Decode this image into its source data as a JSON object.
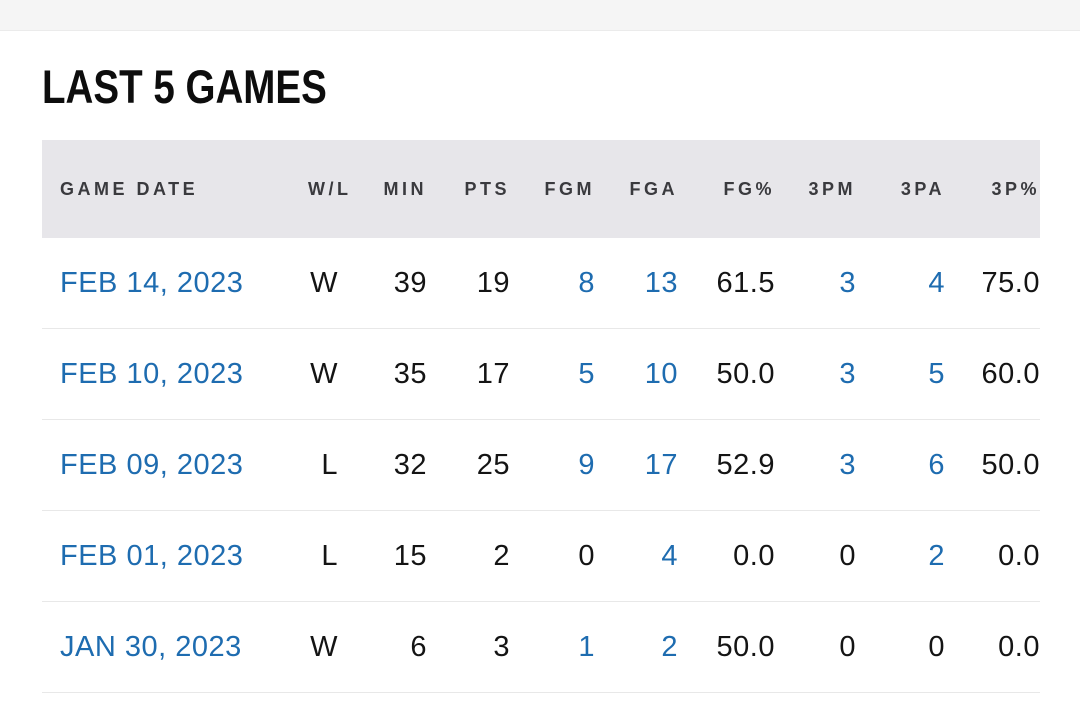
{
  "section": {
    "title": "LAST 5 GAMES"
  },
  "colors": {
    "link_blue": "#1e6cb0",
    "header_bg": "#e7e6ea",
    "divider": "#e8e8e8"
  },
  "table": {
    "columns": [
      {
        "key": "date",
        "label": "GAME DATE"
      },
      {
        "key": "wl",
        "label": "W/L"
      },
      {
        "key": "min",
        "label": "MIN"
      },
      {
        "key": "pts",
        "label": "PTS"
      },
      {
        "key": "fgm",
        "label": "FGM"
      },
      {
        "key": "fga",
        "label": "FGA"
      },
      {
        "key": "fgp",
        "label": "FG%"
      },
      {
        "key": "tpm",
        "label": "3PM"
      },
      {
        "key": "tpa",
        "label": "3PA"
      },
      {
        "key": "tpp",
        "label": "3P%"
      }
    ],
    "rows": [
      {
        "cells": {
          "date": "FEB 14, 2023",
          "wl": "W",
          "min": "39",
          "pts": "19",
          "fgm": "8",
          "fga": "13",
          "fgp": "61.5",
          "tpm": "3",
          "tpa": "4",
          "tpp": "75.0"
        },
        "blue": [
          "date",
          "fgm",
          "fga",
          "tpm",
          "tpa"
        ]
      },
      {
        "cells": {
          "date": "FEB 10, 2023",
          "wl": "W",
          "min": "35",
          "pts": "17",
          "fgm": "5",
          "fga": "10",
          "fgp": "50.0",
          "tpm": "3",
          "tpa": "5",
          "tpp": "60.0"
        },
        "blue": [
          "date",
          "fgm",
          "fga",
          "tpm",
          "tpa"
        ]
      },
      {
        "cells": {
          "date": "FEB 09, 2023",
          "wl": "L",
          "min": "32",
          "pts": "25",
          "fgm": "9",
          "fga": "17",
          "fgp": "52.9",
          "tpm": "3",
          "tpa": "6",
          "tpp": "50.0"
        },
        "blue": [
          "date",
          "fgm",
          "fga",
          "tpm",
          "tpa"
        ]
      },
      {
        "cells": {
          "date": "FEB 01, 2023",
          "wl": "L",
          "min": "15",
          "pts": "2",
          "fgm": "0",
          "fga": "4",
          "fgp": "0.0",
          "tpm": "0",
          "tpa": "2",
          "tpp": "0.0"
        },
        "blue": [
          "date",
          "fga",
          "tpa"
        ]
      },
      {
        "cells": {
          "date": "JAN 30, 2023",
          "wl": "W",
          "min": "6",
          "pts": "3",
          "fgm": "1",
          "fga": "2",
          "fgp": "50.0",
          "tpm": "0",
          "tpa": "0",
          "tpp": "0.0"
        },
        "blue": [
          "date",
          "fgm",
          "fga"
        ]
      }
    ]
  }
}
